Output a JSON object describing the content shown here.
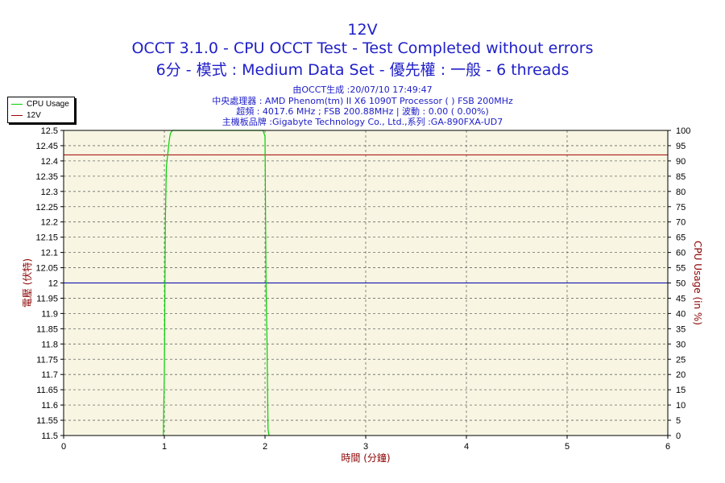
{
  "header": {
    "title": "12V",
    "subtitle1": "OCCT 3.1.0 - CPU OCCT Test - Test Completed without errors",
    "subtitle2": "6分 - 模式 : Medium Data Set - 優先權 : 一般 - 6 threads",
    "info1": "由OCCT生成 :20/07/10 17:49:47",
    "info2": "中央處理器 : AMD Phenom(tm) II X6 1090T Processor (  ) FSB 200MHz",
    "info3": "超頻 : 4017.6 MHz ; FSB 200.88MHz | 波動 : 0.00 ( 0.00%)",
    "info4": "主機板品牌 :Gigabyte Technology Co., Ltd.,系列 :GA-890FXA-UD7"
  },
  "colors": {
    "title": "#2020c8",
    "axis_label": "#8b0000",
    "plot_bg": "#f8f6e2",
    "grid": "#6a6a6a",
    "cpu_series": "#00d000",
    "v12_series": "#a00000",
    "nominal_line": "#0000b0"
  },
  "chart_data": {
    "type": "line",
    "xlabel": "時間 (分鐘)",
    "ylabel_left": "電壓 (伏特)",
    "ylabel_right": "CPU Usage (in %)",
    "xlim": [
      0,
      6
    ],
    "ylim_left": [
      11.5,
      12.5
    ],
    "ylim_right": [
      0,
      100
    ],
    "x_ticks": [
      "0",
      "1",
      "2",
      "3",
      "4",
      "5",
      "6"
    ],
    "y_left_ticks": [
      "12.5",
      "12.45",
      "12.4",
      "12.35",
      "12.3",
      "12.25",
      "12.2",
      "12.15",
      "12.1",
      "12.05",
      "12",
      "11.95",
      "11.9",
      "11.85",
      "11.8",
      "11.75",
      "11.7",
      "11.65",
      "11.6",
      "11.55",
      "11.5"
    ],
    "y_right_ticks": [
      "100",
      "95",
      "90",
      "85",
      "80",
      "75",
      "70",
      "65",
      "60",
      "55",
      "50",
      "45",
      "40",
      "35",
      "30",
      "25",
      "20",
      "15",
      "10",
      "5",
      "0"
    ],
    "grid": true,
    "legend_position": "top-left",
    "reference_line": 12,
    "series": [
      {
        "name": "CPU Usage",
        "axis": "right",
        "x": [
          0.99,
          1.0,
          1.01,
          1.02,
          1.03,
          1.04,
          1.05,
          1.06,
          1.08,
          1.1,
          1.3,
          1.6,
          1.9,
          1.98,
          1.99,
          2.0,
          2.01,
          2.02,
          2.03,
          2.04
        ],
        "values": [
          0,
          20,
          70,
          88,
          91,
          94,
          97,
          99,
          100,
          100,
          100,
          100,
          100,
          100,
          99,
          98,
          50,
          30,
          2,
          0
        ]
      },
      {
        "name": "12V",
        "axis": "left",
        "x": [
          0,
          6
        ],
        "values": [
          12.42,
          12.42
        ]
      }
    ]
  }
}
